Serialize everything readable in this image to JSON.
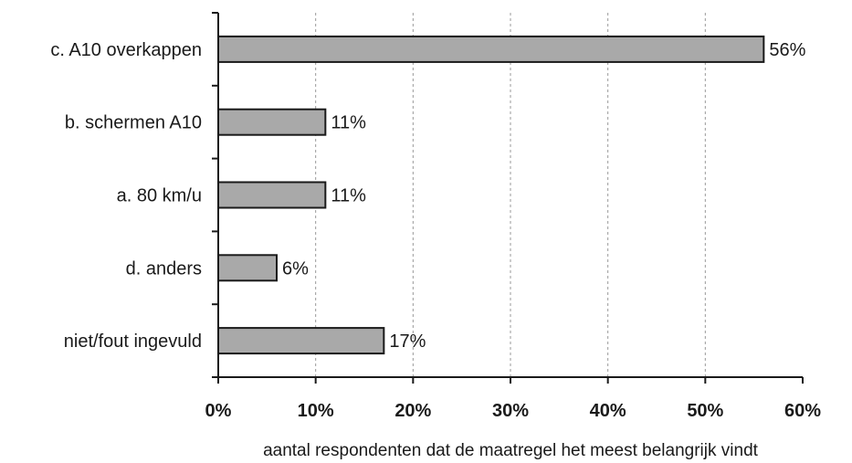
{
  "chart_data": {
    "type": "bar",
    "orientation": "horizontal",
    "categories": [
      "c. A10 overkappen",
      "b. schermen A10",
      "a. 80 km/u",
      "d. anders",
      "niet/fout ingevuld"
    ],
    "values": [
      56,
      11,
      11,
      6,
      17
    ],
    "value_labels": [
      "56%",
      "11%",
      "11%",
      "6%",
      "17%"
    ],
    "xlabel": "aantal respondenten dat de maatregel het meest belangrijk vindt",
    "xlim": [
      0,
      60
    ],
    "x_ticks": [
      0,
      10,
      20,
      30,
      40,
      50,
      60
    ],
    "x_tick_labels": [
      "0%",
      "10%",
      "20%",
      "30%",
      "40%",
      "50%",
      "60%"
    ],
    "grid": "vertical dashed",
    "bar_color": "#a9a9a9",
    "bar_edge_color": "#1a1a1a"
  }
}
